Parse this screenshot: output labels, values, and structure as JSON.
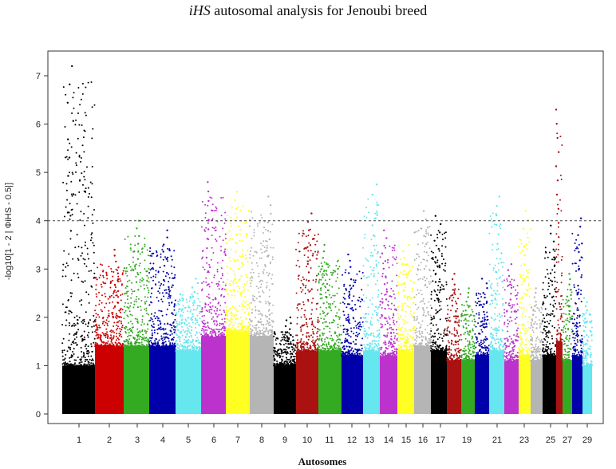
{
  "chart_data": {
    "type": "scatter",
    "subtype": "manhattan",
    "title_italic": "iHS",
    "title_rest": " autosomal analysis for Jenoubi breed",
    "xlabel": "Autosomes",
    "ylabel": "-log10[1 - 2 | ΦiHS - 0.5|]",
    "ylim": [
      0,
      7.5
    ],
    "yticks": [
      0,
      1,
      2,
      3,
      4,
      5,
      6,
      7
    ],
    "threshold": 4,
    "chromosomes": [
      {
        "chr": "1",
        "label": "1",
        "color": "#000000",
        "max": 7.2,
        "band": 1.0
      },
      {
        "chr": "2",
        "label": "2",
        "color": "#cc0000",
        "max": 3.4,
        "band": 1.4
      },
      {
        "chr": "3",
        "label": "3",
        "color": "#33aa22",
        "max": 4.0,
        "band": 1.4
      },
      {
        "chr": "4",
        "label": "4",
        "color": "#0000aa",
        "max": 3.8,
        "band": 1.4
      },
      {
        "chr": "5",
        "label": "5",
        "color": "#66e6ee",
        "max": 2.8,
        "band": 1.3
      },
      {
        "chr": "6",
        "label": "6",
        "color": "#bb33cc",
        "max": 4.8,
        "band": 1.6
      },
      {
        "chr": "7",
        "label": "7",
        "color": "#ffff22",
        "max": 4.6,
        "band": 1.7
      },
      {
        "chr": "8",
        "label": "8",
        "color": "#b5b5b5",
        "max": 4.5,
        "band": 1.6
      },
      {
        "chr": "9",
        "label": "9",
        "color": "#000000",
        "max": 2.0,
        "band": 1.0
      },
      {
        "chr": "10",
        "label": "10",
        "color": "#aa1111",
        "max": 4.15,
        "band": 1.3
      },
      {
        "chr": "11",
        "label": "11",
        "color": "#33aa22",
        "max": 3.5,
        "band": 1.3
      },
      {
        "chr": "12",
        "label": "12",
        "color": "#0000aa",
        "max": 3.3,
        "band": 1.2
      },
      {
        "chr": "13",
        "label": "13",
        "color": "#66e6ee",
        "max": 4.75,
        "band": 1.3
      },
      {
        "chr": "14",
        "label": "14",
        "color": "#bb33cc",
        "max": 3.8,
        "band": 1.2
      },
      {
        "chr": "15",
        "label": "15",
        "color": "#ffff22",
        "max": 3.5,
        "band": 1.3
      },
      {
        "chr": "16",
        "label": "16",
        "color": "#b5b5b5",
        "max": 4.2,
        "band": 1.4
      },
      {
        "chr": "17",
        "label": "17",
        "color": "#000000",
        "max": 4.1,
        "band": 1.3
      },
      {
        "chr": "18",
        "label": "",
        "color": "#aa1111",
        "max": 2.9,
        "band": 1.1
      },
      {
        "chr": "19",
        "label": "19",
        "color": "#33aa22",
        "max": 2.6,
        "band": 1.1
      },
      {
        "chr": "20",
        "label": "",
        "color": "#0000aa",
        "max": 2.8,
        "band": 1.2
      },
      {
        "chr": "21",
        "label": "21",
        "color": "#66e6ee",
        "max": 4.5,
        "band": 1.3
      },
      {
        "chr": "22",
        "label": "",
        "color": "#bb33cc",
        "max": 3.1,
        "band": 1.1
      },
      {
        "chr": "23",
        "label": "23",
        "color": "#ffff22",
        "max": 4.2,
        "band": 1.2
      },
      {
        "chr": "24",
        "label": "",
        "color": "#b5b5b5",
        "max": 2.6,
        "band": 1.1
      },
      {
        "chr": "25",
        "label": "25",
        "color": "#000000",
        "max": 3.9,
        "band": 1.2
      },
      {
        "chr": "26",
        "label": "",
        "color": "#aa1111",
        "max": 6.3,
        "band": 1.5
      },
      {
        "chr": "27",
        "label": "27",
        "color": "#33aa22",
        "max": 2.9,
        "band": 1.1
      },
      {
        "chr": "28",
        "label": "",
        "color": "#0000aa",
        "max": 4.05,
        "band": 1.2
      },
      {
        "chr": "29",
        "label": "29",
        "color": "#66e6ee",
        "max": 2.4,
        "band": 1.0
      }
    ]
  }
}
